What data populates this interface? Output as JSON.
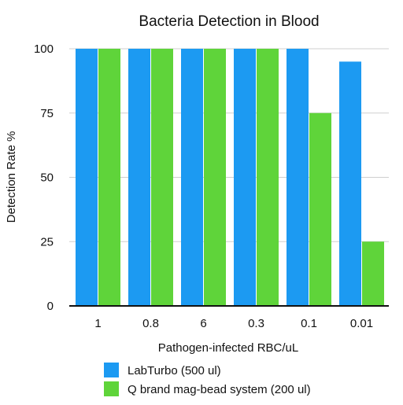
{
  "chart_data": {
    "type": "bar",
    "title": "Bacteria Detection in Blood",
    "xlabel": "Pathogen-infected RBC/uL",
    "ylabel": "Detection Rate %",
    "categories": [
      "1",
      "0.8",
      "6",
      "0.3",
      "0.1",
      "0.01"
    ],
    "series": [
      {
        "name": "LabTurbo (500 ul)",
        "color": "#1c9af2",
        "values": [
          100,
          100,
          100,
          100,
          100,
          95
        ]
      },
      {
        "name": "Q brand mag-bead system (200 ul)",
        "color": "#5fd43a",
        "values": [
          100,
          100,
          100,
          100,
          75,
          25
        ]
      }
    ],
    "ylim": [
      0,
      100
    ],
    "yticks": [
      0,
      25,
      50,
      75,
      100
    ],
    "grid": "horizontal",
    "legend_position": "bottom-left"
  }
}
